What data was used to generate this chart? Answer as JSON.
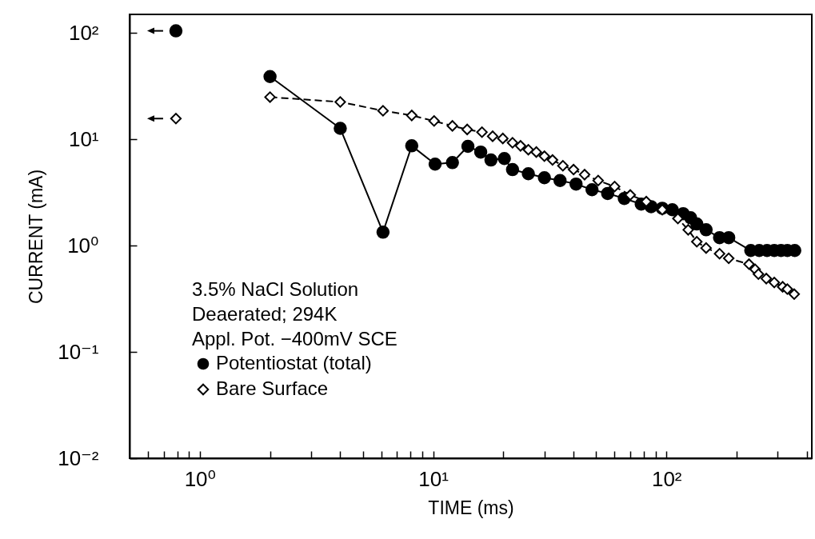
{
  "chart_data": {
    "type": "line",
    "xlabel": "TIME (ms)",
    "ylabel": "CURRENT (mA)",
    "log": "xy",
    "grid": false,
    "legend": "bottom left",
    "xlim": [
      0.5,
      420
    ],
    "ylim": [
      0.01,
      150
    ],
    "xticks": [
      {
        "value": 0.6,
        "label": null
      },
      {
        "value": 0.7,
        "label": null
      },
      {
        "value": 0.8,
        "label": null
      },
      {
        "value": 0.9,
        "label": null
      },
      {
        "value": 1,
        "label": "10⁰"
      },
      {
        "value": 2,
        "label": null
      },
      {
        "value": 3,
        "label": null
      },
      {
        "value": 4,
        "label": null
      },
      {
        "value": 5,
        "label": null
      },
      {
        "value": 6,
        "label": null
      },
      {
        "value": 7,
        "label": null
      },
      {
        "value": 8,
        "label": null
      },
      {
        "value": 9,
        "label": null
      },
      {
        "value": 10,
        "label": "10¹"
      },
      {
        "value": 20,
        "label": null
      },
      {
        "value": 30,
        "label": null
      },
      {
        "value": 40,
        "label": null
      },
      {
        "value": 50,
        "label": null
      },
      {
        "value": 60,
        "label": null
      },
      {
        "value": 70,
        "label": null
      },
      {
        "value": 80,
        "label": null
      },
      {
        "value": 90,
        "label": null
      },
      {
        "value": 100,
        "label": "10²"
      },
      {
        "value": 200,
        "label": null
      },
      {
        "value": 300,
        "label": null
      },
      {
        "value": 400,
        "label": null
      }
    ],
    "yticks": [
      {
        "value": 0.01,
        "label": "10⁻²"
      },
      {
        "value": 0.1,
        "label": "10⁻¹"
      },
      {
        "value": 1,
        "label": "10⁰"
      },
      {
        "value": 10,
        "label": "10¹"
      },
      {
        "value": 100,
        "label": "10²"
      }
    ],
    "annotations": [
      "3.5% NaCl Solution",
      "Deaerated; 294K",
      "Appl. Pot. −400mV SCE"
    ],
    "series": [
      {
        "name": "Potentiostat (total)",
        "color": "#000000",
        "marker": "circle",
        "line_style": "solid",
        "x": [
          2,
          4,
          6.1,
          8.1,
          10.2,
          12.1,
          14.1,
          16,
          17.7,
          20.2,
          21.9,
          25.6,
          30,
          35,
          41,
          48,
          56,
          66,
          78,
          86,
          96,
          106,
          118,
          127,
          135,
          148,
          169,
          185,
          230,
          250,
          270,
          290,
          310,
          330,
          355
        ],
        "values": [
          39,
          12.7,
          1.34,
          8.7,
          5.85,
          6.05,
          8.6,
          7.6,
          6.4,
          6.6,
          5.2,
          4.75,
          4.36,
          4.1,
          3.8,
          3.36,
          3.1,
          2.78,
          2.46,
          2.33,
          2.25,
          2.18,
          2.0,
          1.83,
          1.6,
          1.41,
          1.19,
          1.19,
          0.9,
          0.9,
          0.9,
          0.9,
          0.9,
          0.9,
          0.9
        ]
      },
      {
        "name": "Bare Surface",
        "color": "#000000",
        "marker": "diamond",
        "line_style": "dashed",
        "x": [
          2,
          4,
          6.1,
          8.1,
          10.1,
          12.1,
          14,
          16.2,
          18,
          19.9,
          21.9,
          23.7,
          25.6,
          27.7,
          30,
          32.5,
          36,
          40,
          44.6,
          51,
          60,
          70,
          82,
          96,
          112,
          124,
          135,
          148,
          169,
          185,
          226,
          240,
          248,
          268,
          290,
          315,
          330,
          353
        ],
        "values": [
          25,
          22.5,
          18.6,
          16.8,
          14.9,
          13.4,
          12.4,
          11.7,
          10.7,
          10.2,
          9.3,
          8.7,
          8.0,
          7.6,
          6.95,
          6.4,
          5.65,
          5.2,
          4.66,
          4.1,
          3.6,
          3.0,
          2.6,
          2.18,
          1.8,
          1.41,
          1.09,
          0.95,
          0.84,
          0.76,
          0.67,
          0.6,
          0.54,
          0.49,
          0.45,
          0.41,
          0.39,
          0.35
        ]
      },
      {
        "type": "scatter",
        "color": "#000000",
        "marker": "circle",
        "x": [
          0.79
        ],
        "values": [
          105
        ]
      },
      {
        "type": "scatter",
        "color": "#000000",
        "marker": "diamond",
        "x": [
          0.79
        ],
        "values": [
          15.7
        ]
      }
    ]
  }
}
